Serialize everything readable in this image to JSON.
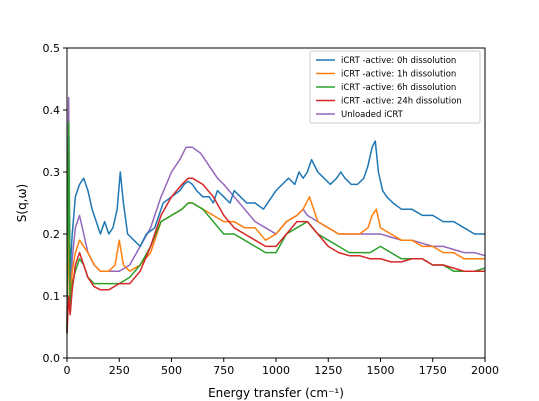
{
  "chart_data": {
    "type": "line",
    "title": "",
    "xlabel": "Energy transfer (cm⁻¹)",
    "ylabel": "S(q,ω)",
    "xlim": [
      0,
      2000
    ],
    "ylim": [
      0,
      0.5
    ],
    "xticks": [
      0,
      250,
      500,
      750,
      1000,
      1250,
      1500,
      1750,
      2000
    ],
    "yticks": [
      0.0,
      0.1,
      0.2,
      0.3,
      0.4,
      0.5
    ],
    "xtick_labels": [
      "0",
      "250",
      "500",
      "750",
      "1000",
      "1250",
      "1500",
      "1750",
      "2000"
    ],
    "ytick_labels": [
      "0.0",
      "0.1",
      "0.2",
      "0.3",
      "0.4",
      "0.5"
    ],
    "grid": false,
    "legend_position": "top-right",
    "draw_order": [
      4,
      0,
      1,
      2,
      3
    ],
    "series": [
      {
        "name": "iCRT -active: 0h dissolution",
        "color": "#1f77b4",
        "x": [
          0,
          8,
          15,
          25,
          40,
          60,
          80,
          100,
          120,
          140,
          160,
          180,
          200,
          220,
          240,
          255,
          270,
          290,
          320,
          350,
          380,
          420,
          460,
          500,
          540,
          560,
          580,
          600,
          620,
          650,
          680,
          700,
          720,
          750,
          780,
          800,
          830,
          860,
          900,
          940,
          980,
          1000,
          1030,
          1060,
          1090,
          1110,
          1130,
          1150,
          1170,
          1200,
          1230,
          1260,
          1290,
          1310,
          1330,
          1360,
          1390,
          1420,
          1440,
          1460,
          1475,
          1490,
          1510,
          1530,
          1560,
          1600,
          1650,
          1700,
          1750,
          1800,
          1850,
          1900,
          1950,
          2000
        ],
        "y": [
          0.04,
          0.3,
          0.14,
          0.2,
          0.26,
          0.28,
          0.29,
          0.27,
          0.24,
          0.22,
          0.2,
          0.22,
          0.2,
          0.21,
          0.24,
          0.3,
          0.25,
          0.2,
          0.19,
          0.18,
          0.2,
          0.21,
          0.25,
          0.26,
          0.27,
          0.28,
          0.285,
          0.28,
          0.27,
          0.26,
          0.26,
          0.25,
          0.27,
          0.26,
          0.25,
          0.27,
          0.26,
          0.25,
          0.25,
          0.24,
          0.26,
          0.27,
          0.28,
          0.29,
          0.28,
          0.3,
          0.29,
          0.3,
          0.32,
          0.3,
          0.29,
          0.28,
          0.29,
          0.3,
          0.29,
          0.28,
          0.28,
          0.29,
          0.31,
          0.34,
          0.35,
          0.3,
          0.27,
          0.26,
          0.25,
          0.24,
          0.24,
          0.23,
          0.23,
          0.22,
          0.22,
          0.21,
          0.2,
          0.2
        ]
      },
      {
        "name": "iCRT -active: 1h dissolution",
        "color": "#ff7f0e",
        "x": [
          0,
          8,
          15,
          25,
          40,
          60,
          80,
          100,
          130,
          160,
          200,
          230,
          250,
          270,
          300,
          350,
          400,
          450,
          500,
          550,
          580,
          600,
          650,
          700,
          750,
          800,
          850,
          900,
          950,
          1000,
          1050,
          1100,
          1130,
          1160,
          1200,
          1250,
          1300,
          1350,
          1400,
          1440,
          1460,
          1480,
          1500,
          1550,
          1600,
          1650,
          1700,
          1750,
          1800,
          1850,
          1900,
          1950,
          2000
        ],
        "y": [
          0.05,
          0.2,
          0.08,
          0.14,
          0.17,
          0.19,
          0.18,
          0.17,
          0.15,
          0.14,
          0.14,
          0.15,
          0.19,
          0.15,
          0.14,
          0.15,
          0.17,
          0.22,
          0.23,
          0.24,
          0.25,
          0.25,
          0.24,
          0.23,
          0.22,
          0.22,
          0.21,
          0.21,
          0.19,
          0.2,
          0.22,
          0.23,
          0.24,
          0.26,
          0.22,
          0.21,
          0.2,
          0.2,
          0.2,
          0.21,
          0.23,
          0.24,
          0.21,
          0.2,
          0.19,
          0.19,
          0.18,
          0.18,
          0.17,
          0.17,
          0.16,
          0.16,
          0.16
        ]
      },
      {
        "name": "iCRT -active: 6h dissolution",
        "color": "#2ca02c",
        "x": [
          0,
          8,
          15,
          25,
          40,
          60,
          80,
          100,
          130,
          160,
          200,
          250,
          300,
          350,
          400,
          450,
          500,
          550,
          580,
          600,
          650,
          700,
          750,
          800,
          850,
          900,
          950,
          1000,
          1050,
          1100,
          1150,
          1200,
          1250,
          1300,
          1350,
          1400,
          1450,
          1500,
          1550,
          1600,
          1650,
          1700,
          1750,
          1800,
          1850,
          1900,
          1950,
          2000
        ],
        "y": [
          0.04,
          0.38,
          0.07,
          0.12,
          0.14,
          0.16,
          0.15,
          0.13,
          0.12,
          0.12,
          0.12,
          0.12,
          0.13,
          0.15,
          0.18,
          0.22,
          0.23,
          0.24,
          0.25,
          0.25,
          0.24,
          0.22,
          0.2,
          0.2,
          0.19,
          0.18,
          0.17,
          0.17,
          0.2,
          0.21,
          0.22,
          0.2,
          0.19,
          0.18,
          0.17,
          0.17,
          0.17,
          0.18,
          0.17,
          0.16,
          0.16,
          0.16,
          0.15,
          0.15,
          0.14,
          0.14,
          0.14,
          0.145
        ]
      },
      {
        "name": "iCRT -active: 24h dissolution",
        "color": "#d62728",
        "x": [
          0,
          8,
          15,
          25,
          40,
          60,
          80,
          100,
          130,
          160,
          200,
          250,
          300,
          350,
          400,
          450,
          500,
          550,
          580,
          600,
          650,
          700,
          750,
          800,
          850,
          900,
          950,
          1000,
          1050,
          1100,
          1150,
          1200,
          1250,
          1300,
          1350,
          1400,
          1450,
          1500,
          1550,
          1600,
          1650,
          1700,
          1750,
          1800,
          1850,
          1900,
          1950,
          2000
        ],
        "y": [
          0.04,
          0.1,
          0.07,
          0.11,
          0.15,
          0.17,
          0.15,
          0.13,
          0.115,
          0.11,
          0.11,
          0.12,
          0.12,
          0.14,
          0.18,
          0.23,
          0.26,
          0.28,
          0.29,
          0.29,
          0.28,
          0.26,
          0.23,
          0.21,
          0.2,
          0.19,
          0.18,
          0.18,
          0.2,
          0.22,
          0.22,
          0.2,
          0.18,
          0.17,
          0.165,
          0.165,
          0.16,
          0.16,
          0.155,
          0.155,
          0.16,
          0.16,
          0.15,
          0.15,
          0.145,
          0.14,
          0.14,
          0.14
        ]
      },
      {
        "name": "Unloaded iCRT",
        "color": "#9467bd",
        "x": [
          0,
          8,
          15,
          25,
          40,
          60,
          80,
          100,
          130,
          160,
          200,
          250,
          300,
          350,
          400,
          450,
          500,
          540,
          570,
          600,
          640,
          680,
          720,
          750,
          800,
          850,
          900,
          950,
          1000,
          1050,
          1100,
          1130,
          1150,
          1200,
          1250,
          1300,
          1350,
          1400,
          1450,
          1500,
          1550,
          1600,
          1650,
          1700,
          1750,
          1800,
          1850,
          1900,
          1950,
          2000
        ],
        "y": [
          0.04,
          0.42,
          0.1,
          0.16,
          0.21,
          0.23,
          0.2,
          0.17,
          0.15,
          0.14,
          0.14,
          0.14,
          0.15,
          0.18,
          0.21,
          0.26,
          0.3,
          0.32,
          0.34,
          0.34,
          0.33,
          0.31,
          0.29,
          0.28,
          0.26,
          0.24,
          0.22,
          0.21,
          0.2,
          0.22,
          0.23,
          0.24,
          0.23,
          0.22,
          0.21,
          0.2,
          0.2,
          0.2,
          0.2,
          0.2,
          0.195,
          0.19,
          0.19,
          0.185,
          0.18,
          0.18,
          0.175,
          0.17,
          0.17,
          0.165
        ]
      }
    ]
  }
}
